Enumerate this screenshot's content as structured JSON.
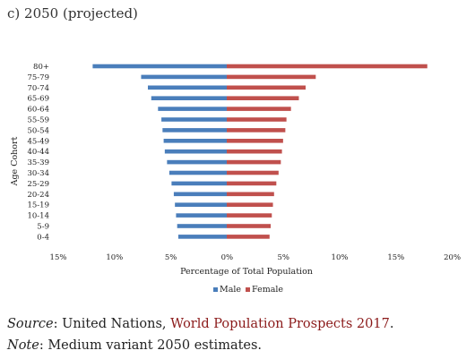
{
  "chart_data": {
    "type": "bar",
    "title": "c) 2050 (projected)",
    "xlabel": "Percentage of Total Population",
    "ylabel": "Age Cohort",
    "x_ticks": [
      "15%",
      "10%",
      "5%",
      "0%",
      "5%",
      "10%",
      "15%",
      "20%"
    ],
    "xlim": [
      -15,
      20
    ],
    "categories": [
      "80+",
      "75-79",
      "70-74",
      "65-69",
      "60-64",
      "55-59",
      "50-54",
      "45-49",
      "40-44",
      "35-39",
      "30-34",
      "25-29",
      "20-24",
      "15-19",
      "10-14",
      "5-9",
      "0-4"
    ],
    "series": [
      {
        "name": "Male",
        "color": "#4a7ebb",
        "values": [
          11.9,
          7.6,
          7.0,
          6.7,
          6.1,
          5.8,
          5.7,
          5.6,
          5.5,
          5.3,
          5.1,
          4.9,
          4.7,
          4.6,
          4.5,
          4.4,
          4.3
        ]
      },
      {
        "name": "Female",
        "color": "#c0504d",
        "values": [
          17.8,
          7.9,
          7.0,
          6.4,
          5.7,
          5.3,
          5.2,
          5.0,
          4.9,
          4.8,
          4.6,
          4.4,
          4.2,
          4.1,
          4.0,
          3.9,
          3.8
        ]
      }
    ],
    "legend_position": "bottom"
  },
  "source": {
    "label": "Source",
    "prefix": ": United Nations, ",
    "link_text": "World Population Prospects 2017",
    "suffix": "."
  },
  "note": {
    "label": "Note",
    "text": ": Medium variant 2050 estimates."
  }
}
